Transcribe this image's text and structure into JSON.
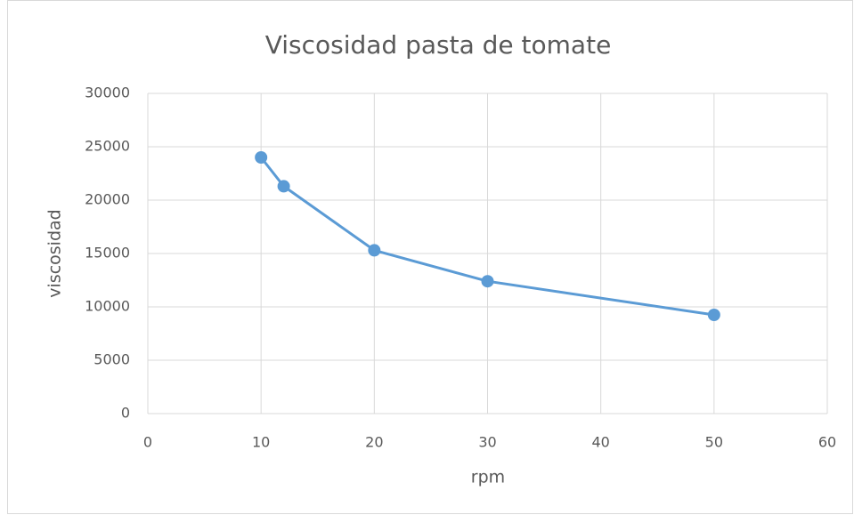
{
  "chart_data": {
    "type": "line",
    "title": "Viscosidad pasta de tomate",
    "x_label": "rpm",
    "y_label": "viscosidad",
    "x": [
      10,
      12,
      20,
      30,
      50
    ],
    "values": [
      24000,
      21300,
      15300,
      12400,
      9250
    ],
    "color": "#5b9bd5",
    "xlim": [
      0,
      60
    ],
    "xticks": [
      0,
      10,
      20,
      30,
      40,
      50,
      60
    ],
    "ylim": [
      0,
      30000
    ],
    "yticks": [
      0,
      5000,
      10000,
      15000,
      20000,
      25000,
      30000
    ],
    "grid": true
  }
}
